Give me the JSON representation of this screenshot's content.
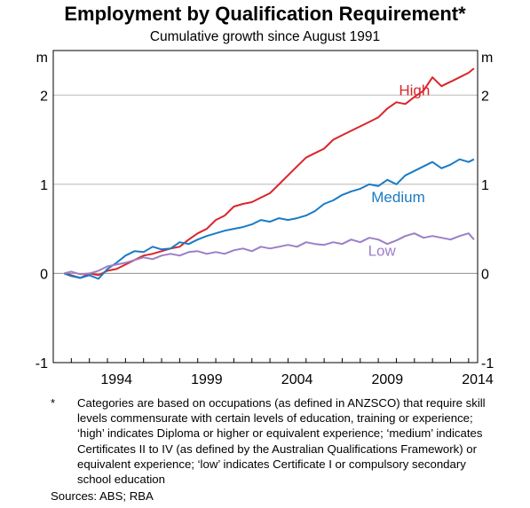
{
  "chart_data": {
    "type": "line",
    "title": "Employment by Qualification Requirement*",
    "subtitle": "Cumulative growth since August 1991",
    "ylabel_left": "m",
    "ylabel_right": "m",
    "ylim": [
      -1,
      2.5
    ],
    "yticks": [
      -1,
      0,
      1,
      2
    ],
    "xlim": [
      1991.0,
      2014.5
    ],
    "xticks": [
      1994,
      1999,
      2004,
      2009,
      2014
    ],
    "grid": "horizontal",
    "legend": "inline labels",
    "series": [
      {
        "name": "High",
        "color": "#d9262a",
        "x": [
          1991.6,
          1992.0,
          1992.5,
          1993.0,
          1993.5,
          1994.0,
          1994.5,
          1995.0,
          1995.5,
          1996.0,
          1996.5,
          1997.0,
          1997.5,
          1998.0,
          1998.5,
          1999.0,
          1999.5,
          2000.0,
          2000.5,
          2001.0,
          2001.5,
          2002.0,
          2002.5,
          2003.0,
          2003.5,
          2004.0,
          2004.5,
          2005.0,
          2005.5,
          2006.0,
          2006.5,
          2007.0,
          2007.5,
          2008.0,
          2008.5,
          2009.0,
          2009.5,
          2010.0,
          2010.5,
          2011.0,
          2011.5,
          2012.0,
          2012.5,
          2013.0,
          2013.5,
          2014.0,
          2014.3
        ],
        "values": [
          0.0,
          -0.02,
          -0.05,
          0.0,
          -0.02,
          0.03,
          0.05,
          0.1,
          0.15,
          0.2,
          0.22,
          0.25,
          0.28,
          0.3,
          0.38,
          0.45,
          0.5,
          0.6,
          0.65,
          0.75,
          0.78,
          0.8,
          0.85,
          0.9,
          1.0,
          1.1,
          1.2,
          1.3,
          1.35,
          1.4,
          1.5,
          1.55,
          1.6,
          1.65,
          1.7,
          1.75,
          1.85,
          1.92,
          1.9,
          1.98,
          2.05,
          2.2,
          2.1,
          2.15,
          2.2,
          2.25,
          2.3
        ]
      },
      {
        "name": "Medium",
        "color": "#1a7bc4",
        "x": [
          1991.6,
          1992.0,
          1992.5,
          1993.0,
          1993.5,
          1994.0,
          1994.5,
          1995.0,
          1995.5,
          1996.0,
          1996.5,
          1997.0,
          1997.5,
          1998.0,
          1998.5,
          1999.0,
          1999.5,
          2000.0,
          2000.5,
          2001.0,
          2001.5,
          2002.0,
          2002.5,
          2003.0,
          2003.5,
          2004.0,
          2004.5,
          2005.0,
          2005.5,
          2006.0,
          2006.5,
          2007.0,
          2007.5,
          2008.0,
          2008.5,
          2009.0,
          2009.5,
          2010.0,
          2010.5,
          2011.0,
          2011.5,
          2012.0,
          2012.5,
          2013.0,
          2013.5,
          2014.0,
          2014.3
        ],
        "values": [
          0.0,
          -0.03,
          -0.05,
          -0.02,
          -0.06,
          0.05,
          0.12,
          0.2,
          0.25,
          0.24,
          0.3,
          0.27,
          0.28,
          0.35,
          0.33,
          0.38,
          0.42,
          0.45,
          0.48,
          0.5,
          0.52,
          0.55,
          0.6,
          0.58,
          0.62,
          0.6,
          0.62,
          0.65,
          0.7,
          0.78,
          0.82,
          0.88,
          0.92,
          0.95,
          1.0,
          0.98,
          1.05,
          1.0,
          1.1,
          1.15,
          1.2,
          1.25,
          1.18,
          1.22,
          1.28,
          1.25,
          1.28
        ]
      },
      {
        "name": "Low",
        "color": "#9c7fc8",
        "x": [
          1991.6,
          1992.0,
          1992.5,
          1993.0,
          1993.5,
          1994.0,
          1994.5,
          1995.0,
          1995.5,
          1996.0,
          1996.5,
          1997.0,
          1997.5,
          1998.0,
          1998.5,
          1999.0,
          1999.5,
          2000.0,
          2000.5,
          2001.0,
          2001.5,
          2002.0,
          2002.5,
          2003.0,
          2003.5,
          2004.0,
          2004.5,
          2005.0,
          2005.5,
          2006.0,
          2006.5,
          2007.0,
          2007.5,
          2008.0,
          2008.5,
          2009.0,
          2009.5,
          2010.0,
          2010.5,
          2011.0,
          2011.5,
          2012.0,
          2012.5,
          2013.0,
          2013.5,
          2014.0,
          2014.3
        ],
        "values": [
          0.0,
          0.02,
          -0.01,
          0.0,
          0.03,
          0.08,
          0.1,
          0.12,
          0.15,
          0.18,
          0.16,
          0.2,
          0.22,
          0.2,
          0.24,
          0.25,
          0.22,
          0.24,
          0.22,
          0.26,
          0.28,
          0.25,
          0.3,
          0.28,
          0.3,
          0.32,
          0.3,
          0.35,
          0.33,
          0.32,
          0.35,
          0.33,
          0.38,
          0.35,
          0.4,
          0.38,
          0.33,
          0.37,
          0.42,
          0.45,
          0.4,
          0.42,
          0.4,
          0.38,
          0.42,
          0.45,
          0.38
        ]
      }
    ]
  },
  "footnote_marker": "*",
  "footnote": "Categories are based on occupations (as defined in ANZSCO) that require skill levels commensurate with certain levels of education, training or experience; ‘high’ indicates Diploma or higher or equivalent experience; ‘medium’ indicates Certificates II to IV (as defined by the Australian Qualifications Framework) or equivalent experience;  ‘low’ indicates Certificate I or compulsory secondary school education",
  "sources": "Sources:   ABS; RBA"
}
